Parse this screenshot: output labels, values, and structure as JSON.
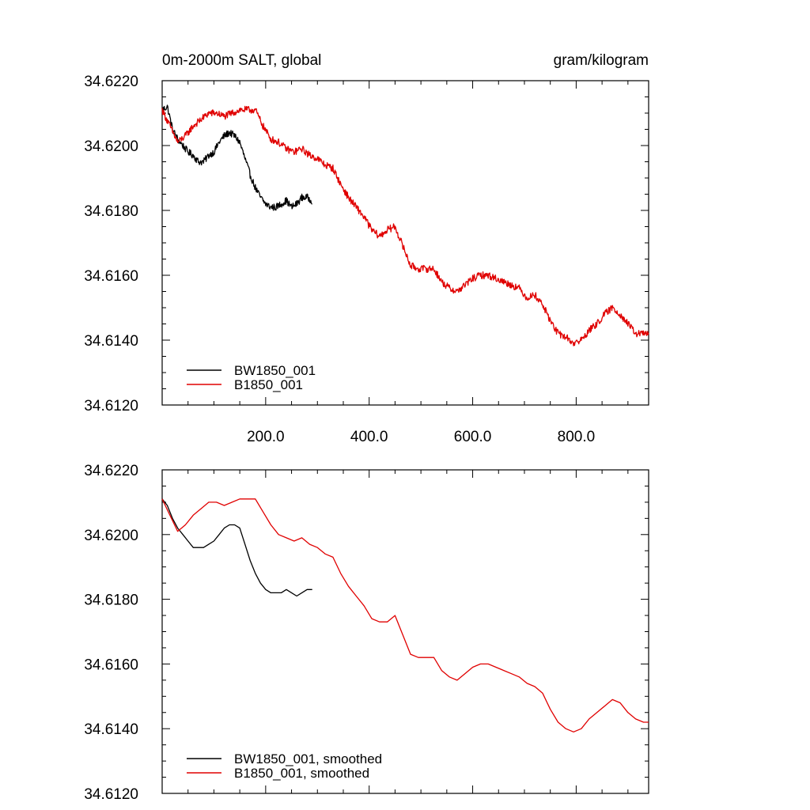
{
  "chart_data": [
    {
      "type": "line",
      "title_left": "0m-2000m SALT, global",
      "title_right": "gram/kilogram",
      "xlim": [
        0,
        940
      ],
      "ylim": [
        34.612,
        34.622
      ],
      "x_ticks": [
        200,
        400,
        600,
        800
      ],
      "x_tick_labels": [
        "200.0",
        "400.0",
        "600.0",
        "800.0"
      ],
      "y_ticks": [
        34.612,
        34.614,
        34.616,
        34.618,
        34.62,
        34.622
      ],
      "y_tick_labels": [
        "34.6120",
        "34.6140",
        "34.6160",
        "34.6180",
        "34.6200",
        "34.6220"
      ],
      "grid": false,
      "legend_position": "bottom-left",
      "series": [
        {
          "name": "BW1850_001",
          "color": "#000000",
          "x": [
            0,
            10,
            20,
            30,
            40,
            50,
            60,
            70,
            80,
            90,
            100,
            110,
            120,
            130,
            140,
            150,
            160,
            170,
            180,
            190,
            200,
            210,
            220,
            230,
            240,
            250,
            260,
            270,
            280,
            290
          ],
          "y": [
            34.6211,
            34.6212,
            34.6205,
            34.6202,
            34.62,
            34.6198,
            34.6197,
            34.6195,
            34.6195,
            34.6197,
            34.6198,
            34.6201,
            34.6203,
            34.6204,
            34.6203,
            34.6201,
            34.6196,
            34.6191,
            34.6187,
            34.6184,
            34.6182,
            34.6181,
            34.6181,
            34.6182,
            34.6183,
            34.6181,
            34.6182,
            34.6184,
            34.6184,
            34.6183
          ]
        },
        {
          "name": "B1850_001",
          "color": "#e00000",
          "x": [
            0,
            15,
            30,
            45,
            60,
            75,
            90,
            105,
            120,
            135,
            150,
            165,
            180,
            195,
            210,
            225,
            240,
            255,
            270,
            285,
            300,
            315,
            330,
            345,
            360,
            375,
            390,
            405,
            420,
            435,
            450,
            465,
            480,
            495,
            510,
            525,
            540,
            555,
            570,
            585,
            600,
            615,
            630,
            645,
            660,
            675,
            690,
            705,
            720,
            735,
            750,
            765,
            780,
            795,
            810,
            825,
            840,
            855,
            870,
            885,
            900,
            915,
            930,
            940
          ],
          "y": [
            34.6211,
            34.6206,
            34.6201,
            34.6203,
            34.6206,
            34.6208,
            34.621,
            34.621,
            34.6209,
            34.621,
            34.6211,
            34.6211,
            34.6211,
            34.6206,
            34.6202,
            34.6201,
            34.6199,
            34.6198,
            34.6199,
            34.6197,
            34.6196,
            34.6194,
            34.6193,
            34.6188,
            34.6184,
            34.6181,
            34.6178,
            34.6174,
            34.6172,
            34.6174,
            34.6175,
            34.6169,
            34.6163,
            34.6162,
            34.6162,
            34.6162,
            34.6158,
            34.6156,
            34.6155,
            34.6157,
            34.6159,
            34.616,
            34.616,
            34.6159,
            34.6158,
            34.6157,
            34.6156,
            34.6153,
            34.6154,
            34.6151,
            34.6146,
            34.6142,
            34.6141,
            34.6139,
            34.614,
            34.6143,
            34.6145,
            34.6148,
            34.615,
            34.6148,
            34.6145,
            34.6142,
            34.6142,
            34.6142
          ]
        }
      ]
    },
    {
      "type": "line",
      "xlim": [
        0,
        940
      ],
      "ylim": [
        34.612,
        34.622
      ],
      "x_ticks": [
        200,
        400,
        600,
        800
      ],
      "y_ticks": [
        34.612,
        34.614,
        34.616,
        34.618,
        34.62,
        34.622
      ],
      "y_tick_labels": [
        "34.6120",
        "34.6140",
        "34.6160",
        "34.6180",
        "34.6200",
        "34.6220"
      ],
      "grid": false,
      "legend_position": "bottom-left",
      "series": [
        {
          "name": "BW1850_001, smoothed",
          "color": "#000000",
          "x": [
            0,
            10,
            20,
            30,
            40,
            50,
            60,
            70,
            80,
            90,
            100,
            110,
            120,
            130,
            140,
            150,
            160,
            170,
            180,
            190,
            200,
            210,
            220,
            230,
            240,
            250,
            260,
            270,
            280,
            290
          ],
          "y": [
            34.6211,
            34.6209,
            34.6205,
            34.6202,
            34.62,
            34.6198,
            34.6196,
            34.6196,
            34.6196,
            34.6197,
            34.6198,
            34.62,
            34.6202,
            34.6203,
            34.6203,
            34.6202,
            34.6197,
            34.6192,
            34.6188,
            34.6185,
            34.6183,
            34.6182,
            34.6182,
            34.6182,
            34.6183,
            34.6182,
            34.6181,
            34.6182,
            34.6183,
            34.6183
          ]
        },
        {
          "name": "B1850_001, smoothed",
          "color": "#e00000",
          "x": [
            0,
            15,
            30,
            45,
            60,
            75,
            90,
            105,
            120,
            135,
            150,
            165,
            180,
            195,
            210,
            225,
            240,
            255,
            270,
            285,
            300,
            315,
            330,
            345,
            360,
            375,
            390,
            405,
            420,
            435,
            450,
            465,
            480,
            495,
            510,
            525,
            540,
            555,
            570,
            585,
            600,
            615,
            630,
            645,
            660,
            675,
            690,
            705,
            720,
            735,
            750,
            765,
            780,
            795,
            810,
            825,
            840,
            855,
            870,
            885,
            900,
            915,
            930,
            940
          ],
          "y": [
            34.6211,
            34.6206,
            34.6201,
            34.6203,
            34.6206,
            34.6208,
            34.621,
            34.621,
            34.6209,
            34.621,
            34.6211,
            34.6211,
            34.6211,
            34.6207,
            34.6203,
            34.62,
            34.6199,
            34.6198,
            34.6199,
            34.6197,
            34.6196,
            34.6194,
            34.6193,
            34.6188,
            34.6184,
            34.6181,
            34.6178,
            34.6174,
            34.6173,
            34.6173,
            34.6175,
            34.6169,
            34.6163,
            34.6162,
            34.6162,
            34.6162,
            34.6158,
            34.6156,
            34.6155,
            34.6157,
            34.6159,
            34.616,
            34.616,
            34.6159,
            34.6158,
            34.6157,
            34.6156,
            34.6154,
            34.6153,
            34.6151,
            34.6146,
            34.6142,
            34.614,
            34.6139,
            34.614,
            34.6143,
            34.6145,
            34.6147,
            34.6149,
            34.6148,
            34.6145,
            34.6143,
            34.6142,
            34.6142
          ]
        }
      ]
    }
  ]
}
